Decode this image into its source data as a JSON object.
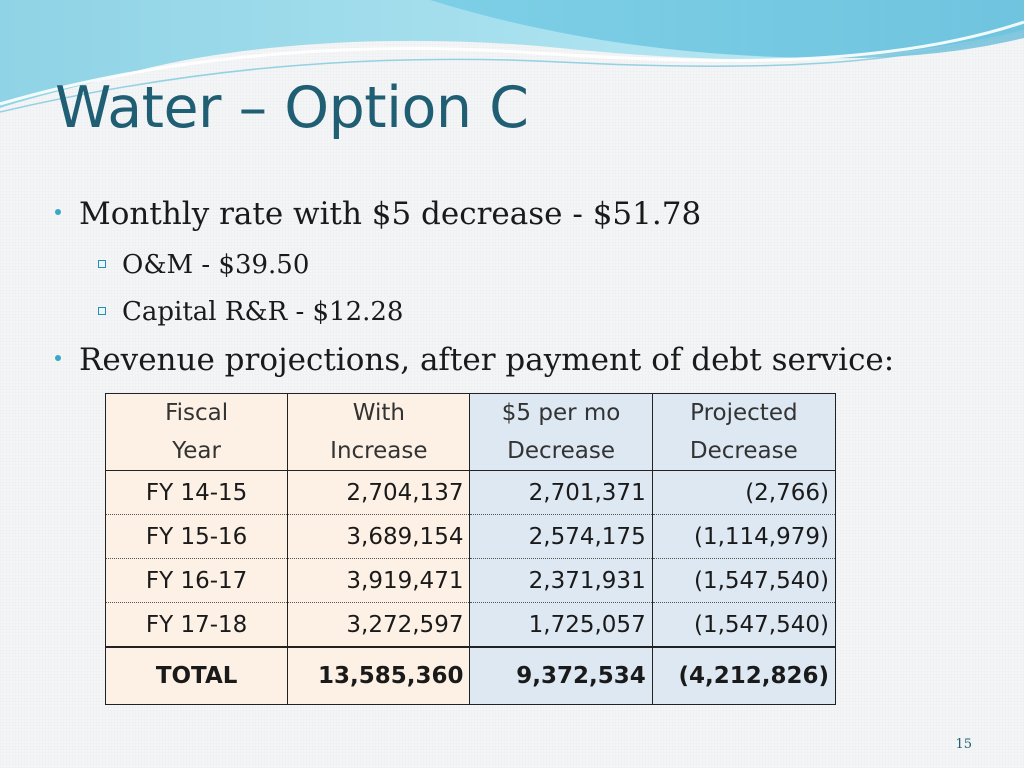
{
  "slide": {
    "title": "Water – Option C",
    "page_number": "15"
  },
  "bullets": [
    {
      "text": "Monthly rate with $5 decrease - $51.78",
      "sub": [
        "O&M - $39.50",
        "Capital R&R - $12.28"
      ]
    },
    {
      "text": "Revenue projections, after payment of debt service:"
    }
  ],
  "table": {
    "headers": [
      [
        "Fiscal",
        "Year"
      ],
      [
        "With",
        "Increase"
      ],
      [
        "$5 per mo",
        "Decrease"
      ],
      [
        "Projected",
        "Decrease"
      ]
    ],
    "rows": [
      [
        "FY 14-15",
        "2,704,137",
        "2,701,371",
        "(2,766)"
      ],
      [
        "FY 15-16",
        "3,689,154",
        "2,574,175",
        "(1,114,979)"
      ],
      [
        "FY 16-17",
        "3,919,471",
        "2,371,931",
        "(1,547,540)"
      ],
      [
        "FY 17-18",
        "3,272,597",
        "1,725,057",
        "(1,547,540)"
      ]
    ],
    "total": [
      "TOTAL",
      "13,585,360",
      "9,372,534",
      "(4,212,826)"
    ]
  },
  "colors": {
    "title": "#1f5e73",
    "bullet": "#3aa6c8",
    "table_left_fill": "#fdf1e6",
    "table_right_fill": "#dde8f3"
  }
}
